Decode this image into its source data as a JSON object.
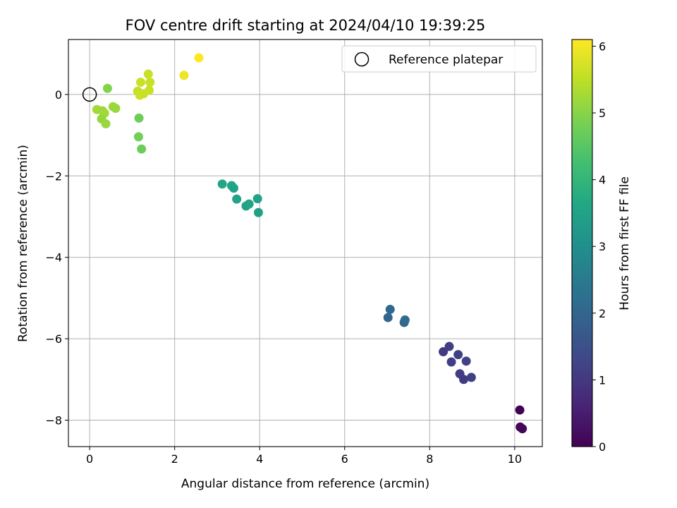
{
  "chart_data": {
    "type": "scatter",
    "title": "FOV centre drift starting at 2024/04/10 19:39:25",
    "xlabel": "Angular distance from reference (arcmin)",
    "ylabel": "Rotation from reference (arcmin)",
    "xlim": [
      -0.5,
      10.65
    ],
    "ylim": [
      -8.65,
      1.35
    ],
    "xticks": [
      0,
      2,
      4,
      6,
      8,
      10
    ],
    "yticks": [
      -8,
      -6,
      -4,
      -2,
      0
    ],
    "xtick_labels": [
      "0",
      "2",
      "4",
      "6",
      "8",
      "10"
    ],
    "ytick_labels": [
      "−8",
      "−6",
      "−4",
      "−2",
      "0"
    ],
    "grid": true,
    "legend": {
      "placement": "top-right",
      "entries": [
        "Reference platepar"
      ]
    },
    "reference_point": {
      "x": 0,
      "y": 0,
      "marker": "open-circle"
    },
    "colorbar": {
      "label": "Hours from first FF file",
      "colormap": "viridis",
      "range": [
        0,
        6.1
      ],
      "ticks": [
        0,
        1,
        2,
        3,
        4,
        5,
        6
      ],
      "tick_labels": [
        "0",
        "1",
        "2",
        "3",
        "4",
        "5",
        "6"
      ]
    },
    "points": [
      {
        "x": 10.12,
        "y": -7.75,
        "c": 0.0
      },
      {
        "x": 10.13,
        "y": -8.17,
        "c": 0.05
      },
      {
        "x": 10.18,
        "y": -8.21,
        "c": 0.1
      },
      {
        "x": 8.32,
        "y": -6.32,
        "c": 1.05
      },
      {
        "x": 8.46,
        "y": -6.19,
        "c": 1.1
      },
      {
        "x": 8.51,
        "y": -6.57,
        "c": 1.1
      },
      {
        "x": 8.67,
        "y": -6.39,
        "c": 1.15
      },
      {
        "x": 8.71,
        "y": -6.86,
        "c": 1.1
      },
      {
        "x": 8.8,
        "y": -7.0,
        "c": 1.05
      },
      {
        "x": 8.86,
        "y": -6.55,
        "c": 1.2
      },
      {
        "x": 8.98,
        "y": -6.95,
        "c": 1.15
      },
      {
        "x": 7.02,
        "y": -5.48,
        "c": 2.0
      },
      {
        "x": 7.07,
        "y": -5.28,
        "c": 2.05
      },
      {
        "x": 7.4,
        "y": -5.6,
        "c": 2.0
      },
      {
        "x": 7.42,
        "y": -5.54,
        "c": 2.1
      },
      {
        "x": 3.12,
        "y": -2.2,
        "c": 3.6
      },
      {
        "x": 3.34,
        "y": -2.24,
        "c": 3.6
      },
      {
        "x": 3.39,
        "y": -2.3,
        "c": 3.5
      },
      {
        "x": 3.46,
        "y": -2.57,
        "c": 3.5
      },
      {
        "x": 3.68,
        "y": -2.74,
        "c": 3.5
      },
      {
        "x": 3.75,
        "y": -2.69,
        "c": 3.55
      },
      {
        "x": 3.95,
        "y": -2.56,
        "c": 3.5
      },
      {
        "x": 3.97,
        "y": -2.9,
        "c": 3.45
      },
      {
        "x": 0.42,
        "y": 0.15,
        "c": 4.95
      },
      {
        "x": 0.17,
        "y": -0.37,
        "c": 5.25
      },
      {
        "x": 0.3,
        "y": -0.4,
        "c": 5.2
      },
      {
        "x": 0.35,
        "y": -0.46,
        "c": 5.25
      },
      {
        "x": 0.28,
        "y": -0.6,
        "c": 5.1
      },
      {
        "x": 0.38,
        "y": -0.72,
        "c": 5.15
      },
      {
        "x": 0.55,
        "y": -0.3,
        "c": 5.2
      },
      {
        "x": 0.61,
        "y": -0.34,
        "c": 5.15
      },
      {
        "x": 1.16,
        "y": -0.58,
        "c": 4.75
      },
      {
        "x": 1.15,
        "y": -1.04,
        "c": 4.8
      },
      {
        "x": 1.22,
        "y": -1.34,
        "c": 4.75
      },
      {
        "x": 1.13,
        "y": 0.08,
        "c": 5.55
      },
      {
        "x": 1.2,
        "y": 0.3,
        "c": 5.6
      },
      {
        "x": 1.18,
        "y": -0.02,
        "c": 5.65
      },
      {
        "x": 1.27,
        "y": 0.02,
        "c": 5.6
      },
      {
        "x": 1.38,
        "y": 0.5,
        "c": 5.6
      },
      {
        "x": 1.42,
        "y": 0.3,
        "c": 5.6
      },
      {
        "x": 1.4,
        "y": 0.1,
        "c": 5.6
      },
      {
        "x": 2.22,
        "y": 0.47,
        "c": 5.95
      },
      {
        "x": 2.57,
        "y": 0.9,
        "c": 6.1
      }
    ]
  }
}
